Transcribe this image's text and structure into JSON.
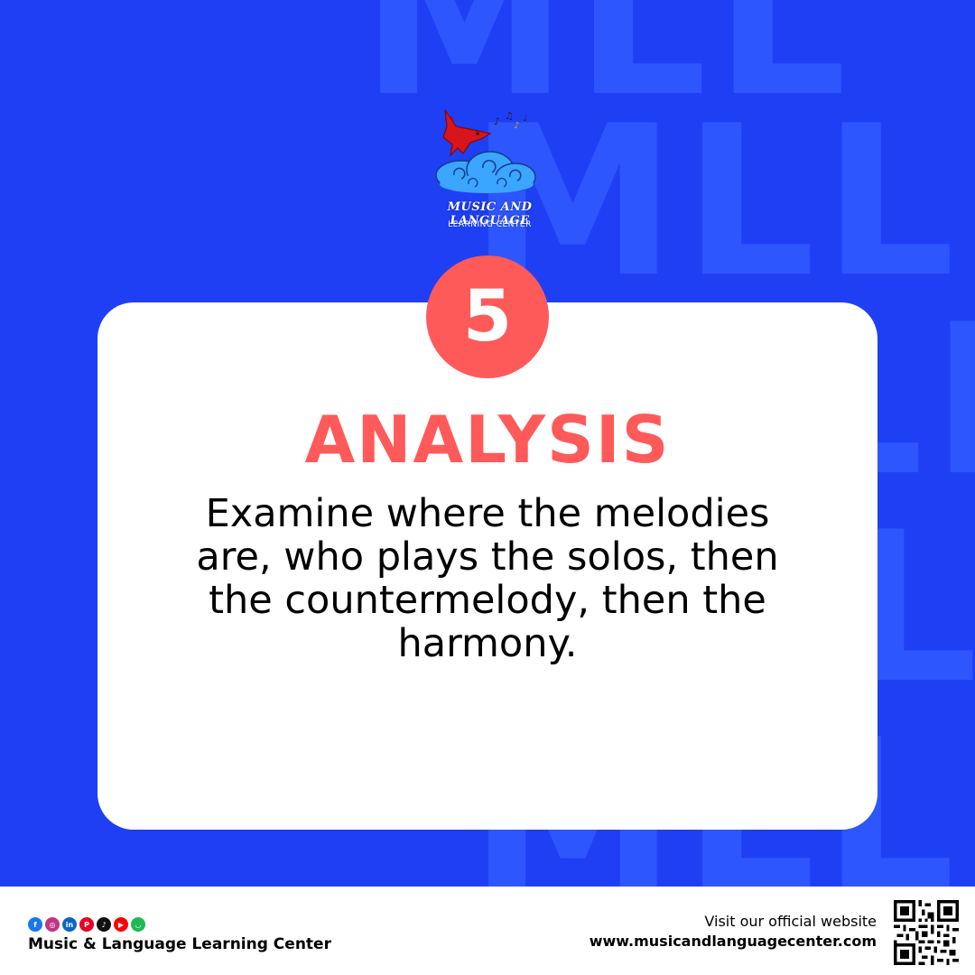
{
  "watermark": [
    "MLL",
    "MLL",
    "MLL",
    "MLC",
    "MLL"
  ],
  "logo": {
    "title": "MUSIC AND LANGUAGE",
    "subtitle": "LEARNING CENTER"
  },
  "step": {
    "number": "5",
    "heading": "ANALYSIS",
    "body": "Examine where the melodies are, who plays the solos, then the countermelody, then the harmony."
  },
  "footer": {
    "social_icons": [
      "facebook-icon",
      "instagram-icon",
      "linkedin-icon",
      "pinterest-icon",
      "tiktok-icon",
      "youtube-icon",
      "shop-icon"
    ],
    "brand": "Music & Language Learning Center",
    "visit_label": "Visit our official website",
    "website": "www.musicandlanguagecenter.com"
  },
  "colors": {
    "background": "#1f3ff5",
    "accent": "#ff5a5a",
    "card": "#ffffff"
  }
}
